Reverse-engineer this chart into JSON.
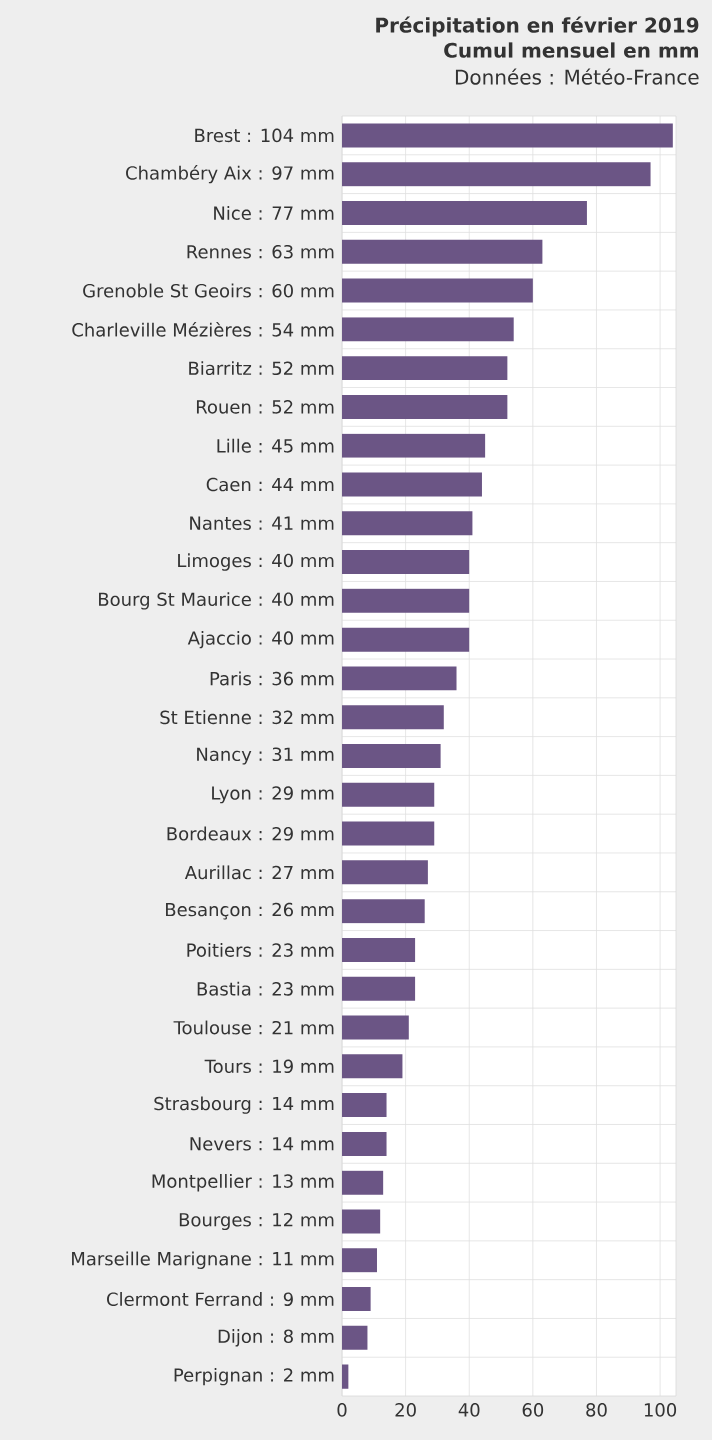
{
  "chart_data": {
    "type": "bar",
    "orientation": "horizontal",
    "title": "Précipitation en février 2019",
    "subtitle": "Cumul mensuel en mm",
    "annotations": [
      "Données : Météo-France"
    ],
    "categories": [
      "Brest : 104 mm",
      "Chambéry Aix : 97 mm",
      "Nice : 77 mm",
      "Rennes : 63 mm",
      "Grenoble St Geoirs : 60 mm",
      "Charleville Mézières : 54 mm",
      "Biarritz : 52 mm",
      "Rouen : 52 mm",
      "Lille : 45 mm",
      "Caen : 44 mm",
      "Nantes : 41 mm",
      "Limoges : 40 mm",
      "Bourg St Maurice : 40 mm",
      "Ajaccio : 40 mm",
      "Paris : 36 mm",
      "St Etienne : 32 mm",
      "Nancy : 31 mm",
      "Lyon : 29 mm",
      "Bordeaux : 29 mm",
      "Aurillac : 27 mm",
      "Besançon : 26 mm",
      "Poitiers : 23 mm",
      "Bastia : 23 mm",
      "Toulouse : 21 mm",
      "Tours : 19 mm",
      "Strasbourg : 14 mm",
      "Nevers : 14 mm",
      "Montpellier : 13 mm",
      "Bourges : 12 mm",
      "Marseille Marignane : 11 mm",
      "Clermont Ferrand : 9 mm",
      "Dijon : 8 mm",
      "Perpignan : 2 mm"
    ],
    "values": [
      104,
      97,
      77,
      63,
      60,
      54,
      52,
      52,
      45,
      44,
      41,
      40,
      40,
      40,
      36,
      32,
      31,
      29,
      29,
      27,
      26,
      23,
      23,
      21,
      19,
      14,
      14,
      13,
      12,
      11,
      9,
      8,
      2
    ],
    "color": "#6b5585",
    "xlim": [
      0,
      105
    ],
    "xticks": [
      0,
      20,
      40,
      60,
      80,
      100
    ],
    "grid": true
  }
}
